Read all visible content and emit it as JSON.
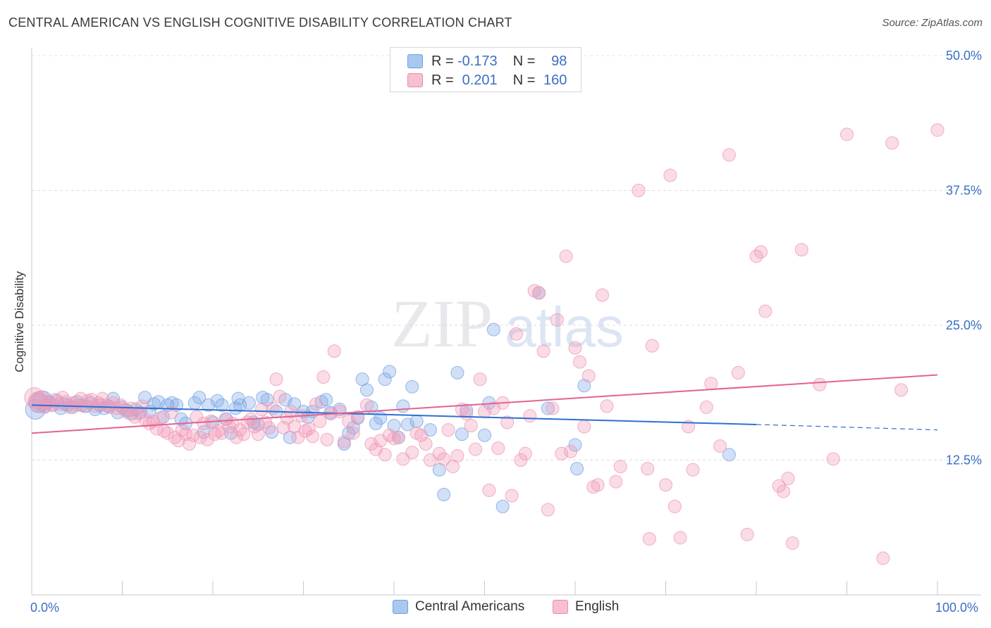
{
  "title": "CENTRAL AMERICAN VS ENGLISH COGNITIVE DISABILITY CORRELATION CHART",
  "source": "Source: ZipAtlas.com",
  "watermark": {
    "zip": "ZIP",
    "atlas": "atlas"
  },
  "legend": {
    "r_label": "R =",
    "n_label": "N =",
    "rows": [
      {
        "r": "-0.173",
        "n": "98",
        "color": "#a9c8f0",
        "border": "#6f9fe0"
      },
      {
        "r": "0.201",
        "n": "160",
        "color": "#f8bfd2",
        "border": "#ec8aa9"
      }
    ]
  },
  "bottom_legend": [
    {
      "label": "Central Americans",
      "color": "#a9c8f0",
      "border": "#6f9fe0"
    },
    {
      "label": "English",
      "color": "#f8bfd2",
      "border": "#ec8aa9"
    }
  ],
  "chart_data": {
    "type": "scatter",
    "ylabel": "Cognitive Disability",
    "xlim": [
      0,
      100
    ],
    "ylim": [
      0,
      50
    ],
    "x_tick_labels": [
      "0.0%",
      "100.0%"
    ],
    "y_ticks": [
      {
        "value": 12.5,
        "label": "12.5%"
      },
      {
        "value": 25.0,
        "label": "25.0%"
      },
      {
        "value": 37.5,
        "label": "37.5%"
      },
      {
        "value": 50.0,
        "label": "50.0%"
      }
    ],
    "grid": "horizontal-dashed",
    "colors": {
      "central": "#7ba7e6",
      "english": "#f19ab8",
      "central_line": "#2f6fd0",
      "english_line": "#e4638f",
      "tick_label": "#3a6fc4"
    },
    "series": [
      {
        "name": "Central Americans",
        "trend": {
          "x0": 0,
          "y0": 17.6,
          "x1": 80,
          "y1": 15.8,
          "dashed_to_x": 100,
          "dashed_to_y": 15.3
        },
        "points": [
          [
            0.4,
            17.2
          ],
          [
            0.8,
            17.8
          ],
          [
            1.2,
            18.0
          ],
          [
            1.5,
            17.5
          ],
          [
            1.9,
            17.9
          ],
          [
            2.3,
            17.6
          ],
          [
            2.8,
            18.0
          ],
          [
            3.2,
            17.3
          ],
          [
            3.6,
            17.7
          ],
          [
            4.0,
            17.6
          ],
          [
            4.5,
            17.4
          ],
          [
            5.0,
            17.9
          ],
          [
            5.5,
            17.6
          ],
          [
            6.0,
            17.5
          ],
          [
            6.5,
            17.8
          ],
          [
            7.0,
            17.2
          ],
          [
            7.5,
            17.6
          ],
          [
            8.0,
            17.3
          ],
          [
            8.5,
            17.5
          ],
          [
            9.0,
            18.2
          ],
          [
            9.5,
            16.9
          ],
          [
            10.0,
            17.4
          ],
          [
            10.5,
            17.1
          ],
          [
            11.0,
            16.8
          ],
          [
            11.5,
            17.2
          ],
          [
            12.0,
            16.9
          ],
          [
            12.5,
            18.3
          ],
          [
            13.0,
            17.0
          ],
          [
            13.5,
            17.7
          ],
          [
            14.0,
            17.9
          ],
          [
            14.5,
            16.5
          ],
          [
            15.0,
            17.6
          ],
          [
            15.5,
            17.8
          ],
          [
            16.0,
            17.6
          ],
          [
            16.5,
            16.3
          ],
          [
            17.0,
            15.9
          ],
          [
            18.0,
            17.8
          ],
          [
            18.5,
            18.3
          ],
          [
            19.0,
            15.1
          ],
          [
            19.5,
            17.6
          ],
          [
            20.0,
            16.0
          ],
          [
            21.0,
            17.6
          ],
          [
            21.5,
            16.3
          ],
          [
            22.0,
            15.0
          ],
          [
            22.5,
            17.3
          ],
          [
            23.0,
            17.6
          ],
          [
            24.0,
            17.8
          ],
          [
            24.5,
            16.0
          ],
          [
            25.0,
            15.8
          ],
          [
            25.5,
            18.3
          ],
          [
            26.0,
            18.1
          ],
          [
            26.5,
            15.1
          ],
          [
            27.0,
            17.0
          ],
          [
            28.0,
            18.1
          ],
          [
            28.5,
            14.6
          ],
          [
            29.0,
            17.7
          ],
          [
            30.0,
            17.0
          ],
          [
            30.5,
            16.5
          ],
          [
            31.0,
            17.0
          ],
          [
            32.0,
            17.9
          ],
          [
            32.5,
            18.1
          ],
          [
            33.0,
            16.9
          ],
          [
            34.0,
            17.2
          ],
          [
            34.5,
            14.0
          ],
          [
            35.0,
            15.0
          ],
          [
            35.5,
            15.5
          ],
          [
            36.0,
            16.4
          ],
          [
            36.5,
            20.0
          ],
          [
            37.0,
            19.0
          ],
          [
            37.5,
            17.4
          ],
          [
            38.0,
            15.9
          ],
          [
            38.5,
            16.4
          ],
          [
            39.0,
            20.0
          ],
          [
            39.5,
            20.7
          ],
          [
            40.0,
            15.7
          ],
          [
            40.5,
            14.6
          ],
          [
            41.0,
            17.5
          ],
          [
            41.5,
            15.8
          ],
          [
            42.0,
            19.3
          ],
          [
            42.5,
            16.1
          ],
          [
            44.0,
            15.3
          ],
          [
            45.0,
            11.6
          ],
          [
            45.5,
            9.3
          ],
          [
            47.0,
            20.6
          ],
          [
            47.5,
            14.9
          ],
          [
            48.0,
            17.1
          ],
          [
            50.0,
            14.8
          ],
          [
            50.5,
            17.8
          ],
          [
            51.0,
            24.6
          ],
          [
            52.0,
            8.2
          ],
          [
            56.0,
            28.0
          ],
          [
            57.0,
            17.3
          ],
          [
            60.0,
            13.9
          ],
          [
            60.2,
            11.7
          ],
          [
            61.0,
            19.4
          ],
          [
            77.0,
            13.0
          ],
          [
            20.5,
            18.0
          ],
          [
            22.8,
            18.2
          ]
        ]
      },
      {
        "name": "English",
        "trend": {
          "x0": 0,
          "y0": 15.0,
          "x1": 100,
          "y1": 20.4
        },
        "points": [
          [
            0.3,
            18.3
          ],
          [
            0.7,
            17.9
          ],
          [
            1.0,
            18.0
          ],
          [
            1.4,
            17.4
          ],
          [
            1.8,
            17.8
          ],
          [
            2.2,
            17.6
          ],
          [
            2.6,
            18.1
          ],
          [
            3.0,
            17.7
          ],
          [
            3.4,
            18.3
          ],
          [
            3.8,
            17.9
          ],
          [
            4.2,
            17.4
          ],
          [
            4.6,
            17.8
          ],
          [
            5.0,
            17.6
          ],
          [
            5.4,
            18.2
          ],
          [
            5.8,
            17.5
          ],
          [
            6.2,
            18.0
          ],
          [
            6.6,
            18.1
          ],
          [
            7.0,
            17.5
          ],
          [
            7.4,
            17.8
          ],
          [
            7.8,
            18.2
          ],
          [
            8.2,
            17.6
          ],
          [
            8.6,
            17.4
          ],
          [
            9.0,
            17.8
          ],
          [
            9.4,
            17.3
          ],
          [
            9.8,
            17.6
          ],
          [
            10.2,
            17.2
          ],
          [
            10.6,
            16.9
          ],
          [
            11.0,
            17.3
          ],
          [
            11.4,
            16.5
          ],
          [
            11.8,
            16.8
          ],
          [
            12.2,
            17.5
          ],
          [
            12.6,
            16.2
          ],
          [
            13.0,
            15.9
          ],
          [
            13.4,
            16.1
          ],
          [
            13.8,
            15.4
          ],
          [
            14.2,
            16.4
          ],
          [
            14.6,
            15.2
          ],
          [
            15.0,
            15.0
          ],
          [
            15.4,
            16.9
          ],
          [
            15.8,
            14.6
          ],
          [
            16.2,
            14.3
          ],
          [
            16.6,
            15.3
          ],
          [
            17.0,
            14.9
          ],
          [
            17.4,
            14.0
          ],
          [
            17.8,
            14.8
          ],
          [
            18.2,
            16.5
          ],
          [
            18.6,
            14.6
          ],
          [
            19.0,
            15.9
          ],
          [
            19.4,
            14.4
          ],
          [
            19.8,
            16.1
          ],
          [
            20.2,
            14.9
          ],
          [
            20.6,
            15.2
          ],
          [
            21.0,
            15.0
          ],
          [
            21.4,
            16.3
          ],
          [
            21.8,
            15.6
          ],
          [
            22.2,
            15.9
          ],
          [
            22.6,
            14.6
          ],
          [
            23.0,
            15.3
          ],
          [
            23.4,
            14.9
          ],
          [
            23.8,
            16.0
          ],
          [
            24.2,
            16.3
          ],
          [
            24.6,
            15.6
          ],
          [
            25.0,
            14.9
          ],
          [
            25.4,
            17.2
          ],
          [
            25.8,
            16.0
          ],
          [
            26.2,
            15.5
          ],
          [
            26.6,
            17.3
          ],
          [
            27.0,
            20.0
          ],
          [
            27.4,
            18.4
          ],
          [
            27.8,
            15.5
          ],
          [
            28.2,
            16.4
          ],
          [
            28.6,
            17.0
          ],
          [
            29.0,
            15.6
          ],
          [
            29.4,
            14.6
          ],
          [
            29.8,
            16.6
          ],
          [
            30.2,
            15.2
          ],
          [
            30.6,
            15.4
          ],
          [
            31.0,
            14.7
          ],
          [
            31.4,
            17.7
          ],
          [
            31.8,
            16.1
          ],
          [
            32.2,
            20.2
          ],
          [
            32.6,
            14.4
          ],
          [
            33.0,
            16.8
          ],
          [
            33.4,
            22.6
          ],
          [
            34.0,
            17.0
          ],
          [
            34.5,
            14.2
          ],
          [
            35.0,
            16.1
          ],
          [
            35.5,
            15.0
          ],
          [
            36.0,
            16.5
          ],
          [
            37.0,
            17.6
          ],
          [
            37.5,
            14.0
          ],
          [
            38.0,
            13.5
          ],
          [
            38.5,
            14.3
          ],
          [
            39.0,
            13.0
          ],
          [
            39.5,
            14.8
          ],
          [
            40.0,
            14.5
          ],
          [
            40.5,
            14.6
          ],
          [
            41.0,
            12.6
          ],
          [
            42.0,
            13.2
          ],
          [
            42.5,
            15.0
          ],
          [
            43.0,
            14.8
          ],
          [
            43.5,
            14.0
          ],
          [
            44.0,
            12.5
          ],
          [
            45.0,
            13.1
          ],
          [
            45.5,
            12.6
          ],
          [
            46.0,
            15.3
          ],
          [
            46.5,
            11.9
          ],
          [
            47.0,
            12.9
          ],
          [
            47.5,
            17.2
          ],
          [
            48.0,
            16.8
          ],
          [
            48.5,
            15.7
          ],
          [
            49.0,
            13.5
          ],
          [
            49.5,
            20.0
          ],
          [
            50.0,
            17.0
          ],
          [
            50.5,
            9.7
          ],
          [
            51.0,
            17.3
          ],
          [
            51.5,
            13.6
          ],
          [
            52.0,
            17.8
          ],
          [
            52.5,
            16.0
          ],
          [
            53.0,
            9.2
          ],
          [
            53.5,
            24.2
          ],
          [
            54.0,
            12.5
          ],
          [
            54.5,
            13.1
          ],
          [
            55.0,
            16.6
          ],
          [
            55.5,
            28.2
          ],
          [
            56.0,
            28.0
          ],
          [
            56.5,
            22.6
          ],
          [
            57.0,
            7.9
          ],
          [
            57.5,
            17.3
          ],
          [
            58.0,
            25.5
          ],
          [
            58.5,
            13.1
          ],
          [
            59.0,
            31.4
          ],
          [
            59.5,
            13.3
          ],
          [
            60.0,
            22.9
          ],
          [
            60.5,
            21.6
          ],
          [
            61.0,
            15.6
          ],
          [
            61.5,
            20.3
          ],
          [
            62.0,
            10.0
          ],
          [
            62.5,
            10.2
          ],
          [
            63.0,
            27.8
          ],
          [
            63.5,
            17.5
          ],
          [
            64.5,
            10.5
          ],
          [
            65.0,
            11.9
          ],
          [
            67.0,
            37.5
          ],
          [
            68.0,
            11.7
          ],
          [
            68.5,
            23.1
          ],
          [
            70.0,
            10.2
          ],
          [
            70.5,
            38.9
          ],
          [
            71.0,
            8.2
          ],
          [
            72.5,
            15.6
          ],
          [
            73.0,
            11.6
          ],
          [
            74.5,
            17.4
          ],
          [
            75.0,
            19.6
          ],
          [
            76.0,
            13.8
          ],
          [
            77.0,
            40.8
          ],
          [
            78.0,
            20.6
          ],
          [
            79.0,
            5.6
          ],
          [
            80.0,
            31.4
          ],
          [
            80.5,
            31.8
          ],
          [
            81.0,
            26.3
          ],
          [
            82.5,
            10.1
          ],
          [
            83.0,
            9.6
          ],
          [
            84.0,
            4.8
          ],
          [
            85.0,
            32.0
          ],
          [
            87.0,
            19.5
          ],
          [
            88.5,
            12.6
          ],
          [
            90.0,
            42.7
          ],
          [
            94.0,
            3.4
          ],
          [
            95.0,
            41.9
          ],
          [
            96.0,
            19.0
          ],
          [
            100.0,
            43.1
          ],
          [
            68.2,
            5.2
          ],
          [
            71.6,
            5.3
          ],
          [
            83.5,
            10.8
          ]
        ]
      }
    ]
  }
}
